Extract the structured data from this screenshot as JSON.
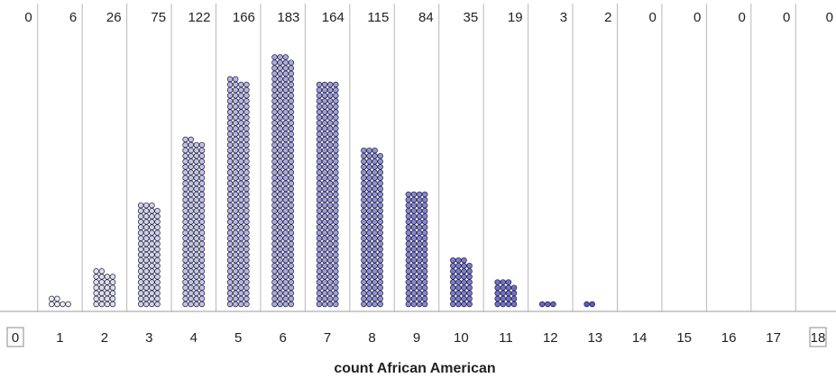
{
  "chart_data": {
    "type": "dotplot",
    "xlabel": "count African American",
    "categories": [
      "0",
      "1",
      "2",
      "3",
      "4",
      "5",
      "6",
      "7",
      "8",
      "9",
      "10",
      "11",
      "12",
      "13",
      "14",
      "15",
      "16",
      "17",
      "18"
    ],
    "counts": [
      "0",
      "6",
      "26",
      "75",
      "122",
      "166",
      "183",
      "164",
      "115",
      "84",
      "35",
      "19",
      "3",
      "2",
      "0",
      "0",
      "0",
      "0",
      "0"
    ],
    "values": [
      0,
      6,
      26,
      75,
      122,
      166,
      183,
      164,
      115,
      84,
      35,
      19,
      3,
      2,
      0,
      0,
      0,
      0,
      0
    ],
    "dots_per_row": 4,
    "max_rows": 47,
    "grid": true,
    "colors": {
      "low": "#ffffff",
      "high": "#2525b8",
      "dot_outline": "#1c1c2c",
      "divider": "#b8b8b8",
      "text": "#222222"
    }
  }
}
